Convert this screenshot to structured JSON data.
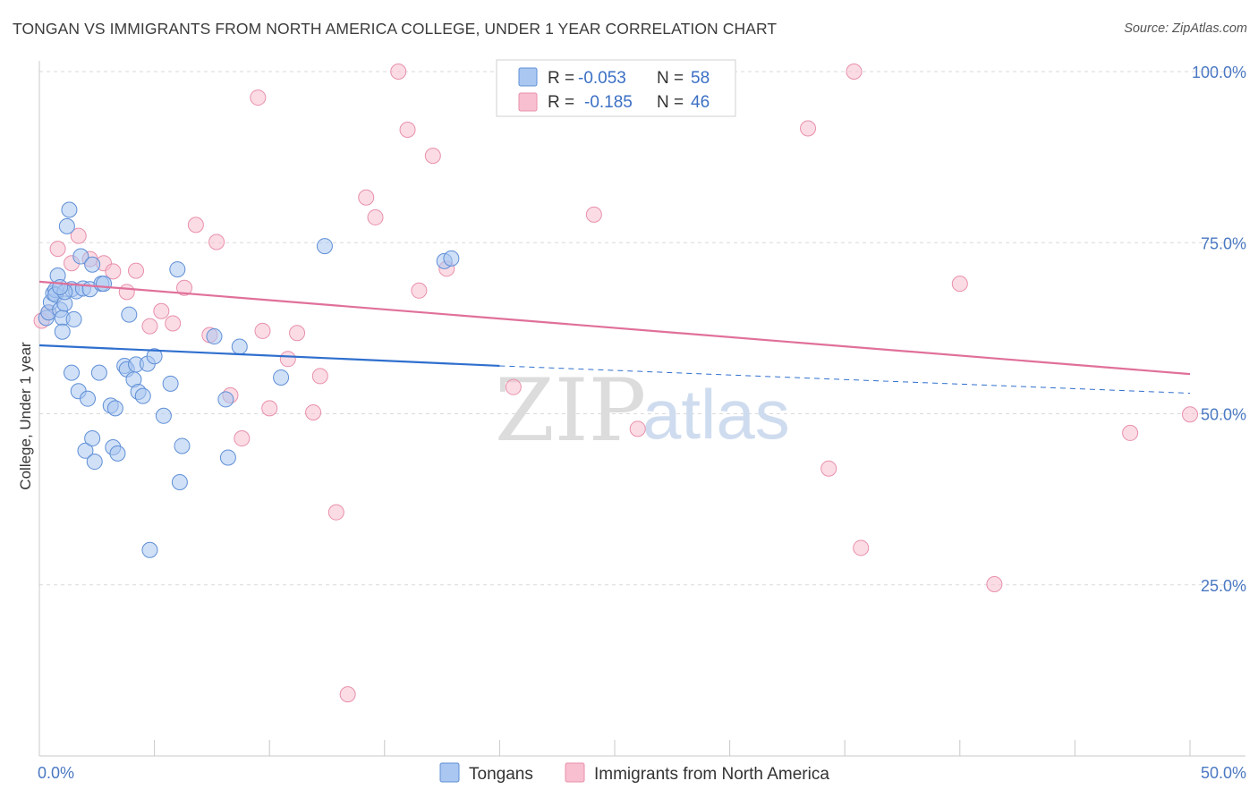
{
  "title": "TONGAN VS IMMIGRANTS FROM NORTH AMERICA COLLEGE, UNDER 1 YEAR CORRELATION CHART",
  "source": "Source: ZipAtlas.com",
  "watermark": {
    "zip": "ZIP",
    "atlas": "atlas"
  },
  "colors": {
    "series1_fill": "#a9c7f0",
    "series1_stroke": "#5f8fd6",
    "series1_line": "#2f6fce",
    "series2_fill": "#f7bfd0",
    "series2_stroke": "#e890ab",
    "series2_line": "#e0709a",
    "grid": "#d9d9d9",
    "tick_text": "#4a78c2"
  },
  "stats": {
    "r_label": "R =",
    "n_label": "N =",
    "series1": {
      "r": "-0.053",
      "n": "58"
    },
    "series2": {
      "r": "-0.185",
      "n": "46"
    }
  },
  "chart_data": {
    "type": "scatter",
    "title": "TONGAN VS IMMIGRANTS FROM NORTH AMERICA COLLEGE, UNDER 1 YEAR CORRELATION CHART",
    "xlabel": "",
    "ylabel": "College, Under 1 year",
    "xlim": [
      0,
      50
    ],
    "ylim": [
      0,
      103
    ],
    "x_ticks": [
      0,
      50
    ],
    "x_tick_labels": [
      "0.0%",
      "50.0%"
    ],
    "y_ticks": [
      25,
      50,
      75,
      100
    ],
    "y_tick_labels": [
      "25.0%",
      "50.0%",
      "75.0%",
      "100.0%"
    ],
    "grid": true,
    "legend_position": "bottom-center",
    "series": [
      {
        "name": "Tongans",
        "r": -0.053,
        "n": 58,
        "trend": {
          "x0": 0,
          "y0": 60.0,
          "x1": 20,
          "y1": 57.0,
          "dashed_to_x": 50,
          "dashed_to_y": 53.0
        },
        "points": [
          [
            0.3,
            64.0
          ],
          [
            0.4,
            64.8
          ],
          [
            0.5,
            66.3
          ],
          [
            0.6,
            67.6
          ],
          [
            0.7,
            68.1
          ],
          [
            0.7,
            67.4
          ],
          [
            0.8,
            70.2
          ],
          [
            0.9,
            65.2
          ],
          [
            1.0,
            64.0
          ],
          [
            1.0,
            62.0
          ],
          [
            1.1,
            66.1
          ],
          [
            1.2,
            77.4
          ],
          [
            1.3,
            79.8
          ],
          [
            1.4,
            68.2
          ],
          [
            1.4,
            56.0
          ],
          [
            1.5,
            63.8
          ],
          [
            1.6,
            67.9
          ],
          [
            1.7,
            53.3
          ],
          [
            1.8,
            73.0
          ],
          [
            1.9,
            68.3
          ],
          [
            2.0,
            44.6
          ],
          [
            2.1,
            52.2
          ],
          [
            2.2,
            68.2
          ],
          [
            2.3,
            46.4
          ],
          [
            2.4,
            43.0
          ],
          [
            2.6,
            56.0
          ],
          [
            2.7,
            69.0
          ],
          [
            2.8,
            69.0
          ],
          [
            3.1,
            51.2
          ],
          [
            3.2,
            45.1
          ],
          [
            3.3,
            50.8
          ],
          [
            3.4,
            44.2
          ],
          [
            3.7,
            57.0
          ],
          [
            3.8,
            56.5
          ],
          [
            3.9,
            64.5
          ],
          [
            4.1,
            55.0
          ],
          [
            4.2,
            57.2
          ],
          [
            4.3,
            53.2
          ],
          [
            4.5,
            52.6
          ],
          [
            4.7,
            57.3
          ],
          [
            4.8,
            30.1
          ],
          [
            5.0,
            58.4
          ],
          [
            5.4,
            49.7
          ],
          [
            5.7,
            54.4
          ],
          [
            6.0,
            71.1
          ],
          [
            6.1,
            40.0
          ],
          [
            6.2,
            45.3
          ],
          [
            7.6,
            61.3
          ],
          [
            8.1,
            52.1
          ],
          [
            8.2,
            43.6
          ],
          [
            8.7,
            59.8
          ],
          [
            10.5,
            55.3
          ],
          [
            12.4,
            74.5
          ],
          [
            17.6,
            72.3
          ],
          [
            17.9,
            72.7
          ],
          [
            2.3,
            71.8
          ],
          [
            1.1,
            67.8
          ],
          [
            0.9,
            68.5
          ]
        ]
      },
      {
        "name": "Immigrants from North America",
        "r": -0.185,
        "n": 46,
        "trend": {
          "x0": 0,
          "y0": 69.3,
          "x1": 50,
          "y1": 55.8
        },
        "points": [
          [
            0.1,
            63.6
          ],
          [
            0.4,
            64.8
          ],
          [
            0.8,
            74.1
          ],
          [
            1.7,
            76.0
          ],
          [
            2.2,
            72.6
          ],
          [
            2.8,
            72.0
          ],
          [
            3.2,
            70.8
          ],
          [
            3.8,
            67.8
          ],
          [
            4.2,
            70.9
          ],
          [
            4.8,
            62.8
          ],
          [
            5.3,
            65.0
          ],
          [
            5.8,
            63.2
          ],
          [
            6.3,
            68.4
          ],
          [
            6.8,
            77.6
          ],
          [
            7.4,
            61.5
          ],
          [
            7.7,
            75.1
          ],
          [
            8.3,
            52.7
          ],
          [
            8.8,
            46.4
          ],
          [
            9.5,
            96.2
          ],
          [
            9.7,
            62.1
          ],
          [
            10.0,
            50.8
          ],
          [
            10.8,
            58.0
          ],
          [
            11.2,
            61.8
          ],
          [
            11.9,
            50.2
          ],
          [
            12.2,
            55.5
          ],
          [
            12.9,
            35.6
          ],
          [
            13.4,
            9.0
          ],
          [
            14.2,
            81.6
          ],
          [
            14.6,
            78.7
          ],
          [
            15.6,
            100.0
          ],
          [
            16.0,
            91.5
          ],
          [
            16.5,
            68.0
          ],
          [
            17.1,
            87.7
          ],
          [
            17.7,
            71.2
          ],
          [
            20.6,
            53.9
          ],
          [
            24.1,
            79.1
          ],
          [
            26.0,
            47.8
          ],
          [
            33.4,
            91.7
          ],
          [
            34.3,
            42.0
          ],
          [
            35.4,
            100.0
          ],
          [
            35.7,
            30.4
          ],
          [
            40.0,
            69.0
          ],
          [
            41.5,
            25.1
          ],
          [
            47.4,
            47.2
          ],
          [
            50.0,
            49.9
          ],
          [
            1.4,
            72.0
          ]
        ]
      }
    ]
  }
}
